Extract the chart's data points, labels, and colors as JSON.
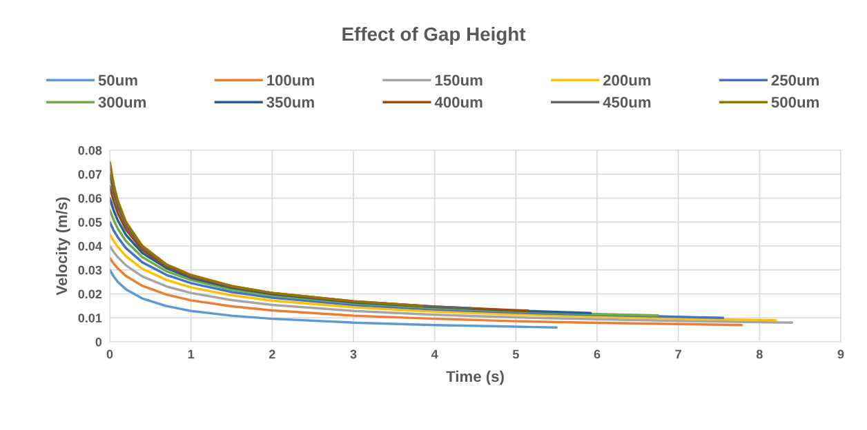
{
  "chart_data": {
    "type": "line",
    "title": "Effect of Gap Height",
    "xlabel": "Time (s)",
    "ylabel": "Velocity (m/s)",
    "xlim": [
      0,
      9
    ],
    "xticks": [
      0,
      1,
      2,
      3,
      4,
      5,
      6,
      7,
      8,
      9
    ],
    "ylim": [
      0,
      0.08
    ],
    "yticks": [
      0,
      0.01,
      0.02,
      0.03,
      0.04,
      0.05,
      0.06,
      0.07,
      0.08
    ],
    "grid": true,
    "legend": "top",
    "marker": "none",
    "line_style": "solid",
    "series": [
      {
        "name": "50um",
        "color": "#5b9bd5",
        "x": [
          0,
          0.05,
          0.1,
          0.2,
          0.4,
          0.7,
          1,
          1.5,
          2,
          3,
          4,
          5,
          5.5
        ],
        "values": [
          0.03,
          0.0272,
          0.025,
          0.0219,
          0.0181,
          0.0149,
          0.0129,
          0.0109,
          0.0096,
          0.008,
          0.007,
          0.0063,
          0.006
        ]
      },
      {
        "name": "100um",
        "color": "#ed7d31",
        "x": [
          0,
          0.05,
          0.1,
          0.2,
          0.4,
          0.7,
          1,
          1.5,
          2,
          3,
          4,
          5,
          6,
          7,
          7.78
        ],
        "values": [
          0.035,
          0.0326,
          0.0306,
          0.0275,
          0.0234,
          0.0197,
          0.0173,
          0.0148,
          0.0131,
          0.0109,
          0.0096,
          0.0086,
          0.0079,
          0.0074,
          0.007
        ]
      },
      {
        "name": "150um",
        "color": "#a5a5a5",
        "x": [
          0,
          0.05,
          0.1,
          0.2,
          0.4,
          0.7,
          1,
          1.5,
          2,
          3,
          4,
          5,
          6,
          7,
          8,
          8.4
        ],
        "values": [
          0.04,
          0.0374,
          0.0353,
          0.0319,
          0.0273,
          0.0231,
          0.0204,
          0.0174,
          0.0154,
          0.0129,
          0.0113,
          0.0102,
          0.0094,
          0.0087,
          0.0082,
          0.008
        ]
      },
      {
        "name": "200um",
        "color": "#ffc000",
        "x": [
          0,
          0.05,
          0.1,
          0.2,
          0.4,
          0.7,
          1,
          1.5,
          2,
          3,
          4,
          5,
          6,
          7,
          8,
          8.2
        ],
        "values": [
          0.045,
          0.042,
          0.0396,
          0.0357,
          0.0305,
          0.0258,
          0.0227,
          0.0194,
          0.0172,
          0.0144,
          0.0126,
          0.0114,
          0.0105,
          0.0097,
          0.0091,
          0.009
        ]
      },
      {
        "name": "250um",
        "color": "#4472c4",
        "x": [
          0,
          0.05,
          0.1,
          0.2,
          0.4,
          0.7,
          1,
          1.5,
          2,
          3,
          4,
          5,
          6,
          7,
          7.55
        ],
        "values": [
          0.05,
          0.0464,
          0.0436,
          0.0391,
          0.0332,
          0.0279,
          0.0245,
          0.0208,
          0.0184,
          0.0154,
          0.0135,
          0.0122,
          0.0112,
          0.0104,
          0.01
        ]
      },
      {
        "name": "300um",
        "color": "#70ad47",
        "x": [
          0,
          0.05,
          0.1,
          0.2,
          0.4,
          0.7,
          1,
          1.5,
          2,
          3,
          4,
          5,
          6,
          6.75
        ],
        "values": [
          0.055,
          0.0507,
          0.0472,
          0.042,
          0.0354,
          0.0294,
          0.0258,
          0.0218,
          0.0193,
          0.0161,
          0.0141,
          0.0127,
          0.0116,
          0.011
        ]
      },
      {
        "name": "350um",
        "color": "#255e91",
        "x": [
          0,
          0.05,
          0.1,
          0.2,
          0.4,
          0.7,
          1,
          1.5,
          2,
          3,
          4,
          5,
          5.92
        ],
        "values": [
          0.06,
          0.0547,
          0.0506,
          0.0446,
          0.0371,
          0.0307,
          0.0267,
          0.0226,
          0.0199,
          0.0165,
          0.0145,
          0.013,
          0.012
        ]
      },
      {
        "name": "400um",
        "color": "#9e480e",
        "x": [
          0,
          0.05,
          0.1,
          0.2,
          0.4,
          0.7,
          1,
          1.5,
          2,
          3,
          4,
          5,
          5.15
        ],
        "values": [
          0.065,
          0.0585,
          0.0537,
          0.0468,
          0.0384,
          0.0315,
          0.0273,
          0.023,
          0.0203,
          0.0168,
          0.0147,
          0.0132,
          0.013
        ]
      },
      {
        "name": "450um",
        "color": "#636363",
        "x": [
          0,
          0.05,
          0.1,
          0.2,
          0.4,
          0.7,
          1,
          1.5,
          2,
          3,
          4,
          4.45
        ],
        "values": [
          0.07,
          0.0621,
          0.0564,
          0.0485,
          0.0394,
          0.032,
          0.0276,
          0.0232,
          0.0204,
          0.0169,
          0.0147,
          0.014
        ]
      },
      {
        "name": "500um",
        "color": "#997300",
        "x": [
          0,
          0.05,
          0.1,
          0.2,
          0.4,
          0.7,
          1,
          1.5,
          2,
          3,
          3.85
        ],
        "values": [
          0.075,
          0.0655,
          0.0588,
          0.05,
          0.0401,
          0.0323,
          0.0279,
          0.0233,
          0.0204,
          0.0169,
          0.015
        ]
      }
    ]
  }
}
